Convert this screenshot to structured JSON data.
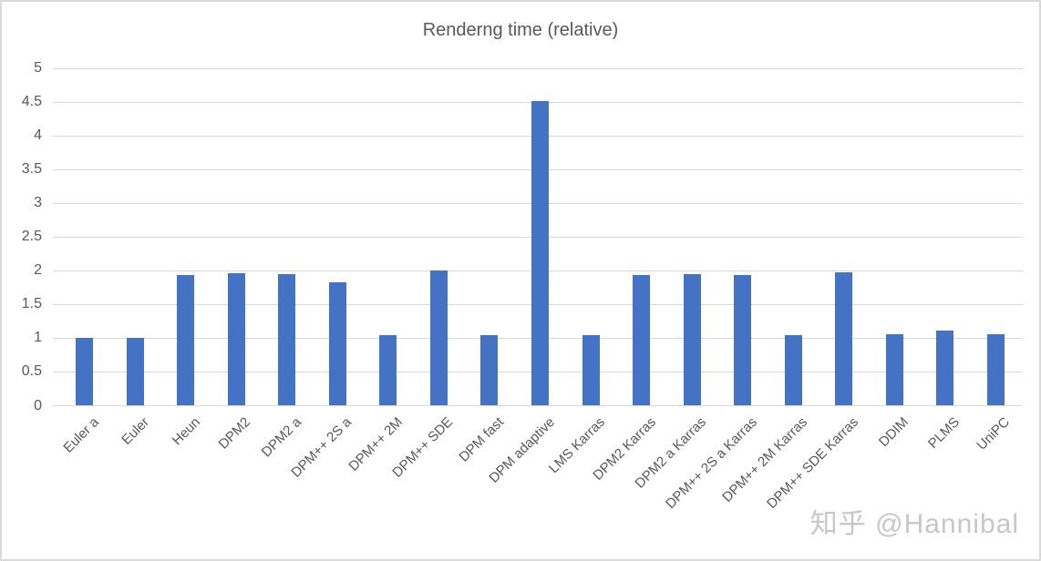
{
  "chart_data": {
    "type": "bar",
    "title": "Renderng time (relative)",
    "categories": [
      "Euler a",
      "Euler",
      "Heun",
      "DPM2",
      "DPM2 a",
      "DPM++ 2S a",
      "DPM++ 2M",
      "DPM++ SDE",
      "DPM fast",
      "DPM adaptive",
      "LMS Karras",
      "DPM2 Karras",
      "DPM2 a Karras",
      "DPM++ 2S a Karras",
      "DPM++ 2M Karras",
      "DPM++ SDE Karras",
      "DDIM",
      "PLMS",
      "UniPC"
    ],
    "values": [
      1.0,
      1.0,
      1.93,
      1.96,
      1.95,
      1.83,
      1.05,
      2.0,
      1.04,
      4.52,
      1.04,
      1.94,
      1.95,
      1.94,
      1.04,
      1.98,
      1.06,
      1.12,
      1.06
    ],
    "xlabel": "",
    "ylabel": "",
    "ylim": [
      0,
      5
    ],
    "ytick_interval": 0.5,
    "ytick_labels": [
      "0",
      "0.5",
      "1",
      "1.5",
      "2",
      "2.5",
      "3",
      "3.5",
      "4",
      "4.5",
      "5"
    ],
    "grid": true,
    "legend": false,
    "bar_color": "#4472c4",
    "gridline_color": "#d9d9d9",
    "text_color": "#595959"
  },
  "watermark": {
    "text": "知乎 @Hannibal"
  }
}
